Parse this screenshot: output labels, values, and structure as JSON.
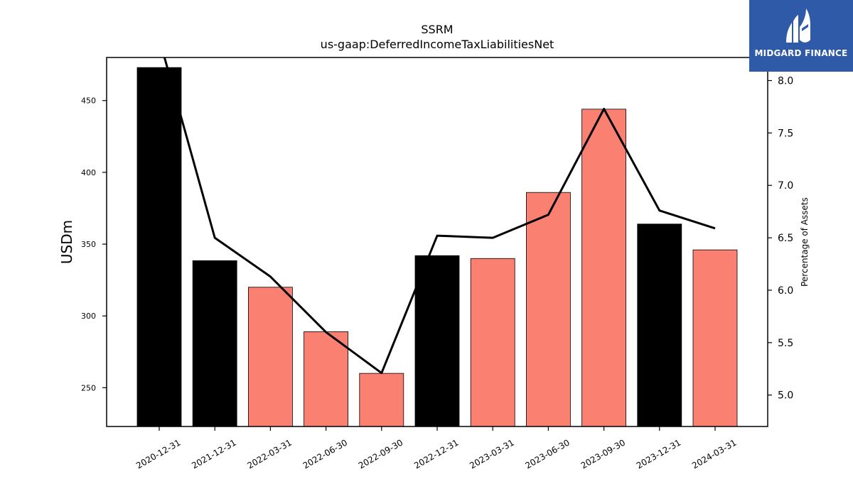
{
  "chart_data": {
    "type": "bar",
    "title": "SSRM",
    "subtitle": "us-gaap:DeferredIncomeTaxLiabilitiesNet",
    "ylabel": "USDm",
    "y2label": "Percentage of Assets",
    "categories": [
      "2020-12-31",
      "2021-12-31",
      "2022-03-31",
      "2022-06-30",
      "2022-09-30",
      "2022-12-31",
      "2023-03-31",
      "2023-06-30",
      "2023-09-30",
      "2023-12-31",
      "2024-03-31"
    ],
    "series": [
      {
        "values": [
          473,
          338.5,
          320,
          289,
          260,
          342,
          340,
          386,
          444,
          364,
          346
        ],
        "bar_colors": [
          "#000000",
          "#000000",
          "#fa8072",
          "#fa8072",
          "#fa8072",
          "#000000",
          "#fa8072",
          "#fa8072",
          "#fa8072",
          "#000000",
          "#fa8072"
        ],
        "axis": "left"
      },
      {
        "type": "line",
        "values": [
          8.4,
          6.5,
          6.13,
          5.6,
          5.21,
          6.52,
          6.5,
          6.72,
          7.73,
          6.76,
          6.59
        ],
        "color": "#000000",
        "axis": "right"
      }
    ],
    "ylim": [
      223,
      480
    ],
    "y2lim": [
      4.7,
      8.22
    ],
    "yticks": [
      250,
      300,
      350,
      400,
      450
    ],
    "y2ticks": [
      "5.0",
      "5.5",
      "6.0",
      "6.5",
      "7.0",
      "7.5",
      "8.0"
    ],
    "grid": false
  },
  "logo": {
    "text": "MIDGARD FINANCE",
    "background": "#2f5aa8"
  }
}
